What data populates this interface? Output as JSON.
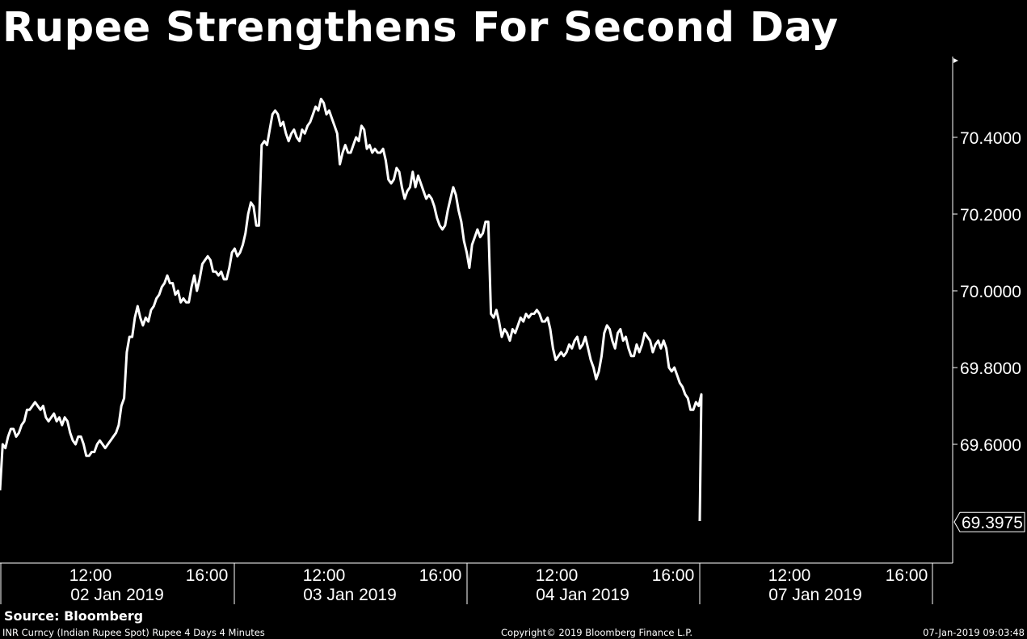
{
  "title": "Rupee Strengthens For Second Day",
  "chart_data": {
    "type": "line",
    "title": "Rupee Strengthens For Second Day",
    "xlabel": "",
    "ylabel": "",
    "ylim": [
      69.3,
      70.6
    ],
    "y_ticks": [
      69.6,
      69.8,
      70.0,
      70.2,
      70.4
    ],
    "y_tick_labels": [
      "69.6000",
      "69.8000",
      "70.0000",
      "70.2000",
      "70.4000"
    ],
    "last_value": 69.3975,
    "last_value_label": "69.3975",
    "x_time_ticks": [
      "12:00",
      "16:00",
      "12:00",
      "16:00",
      "12:00",
      "16:00",
      "12:00",
      "16:00"
    ],
    "x_date_labels": [
      "02 Jan 2019",
      "03 Jan 2019",
      "04 Jan 2019",
      "07 Jan 2019"
    ],
    "series": [
      {
        "values": [
          69.48,
          69.6,
          69.59,
          69.62,
          69.64,
          69.64,
          69.62,
          69.63,
          69.65,
          69.66,
          69.69,
          69.69,
          69.7,
          69.71,
          69.7,
          69.69,
          69.7,
          69.67,
          69.66,
          69.67,
          69.68,
          69.66,
          69.67,
          69.65,
          69.67,
          69.66,
          69.63,
          69.61,
          69.6,
          69.62,
          69.62,
          69.6,
          69.57,
          69.57,
          69.58,
          69.58,
          69.6,
          69.61,
          69.6,
          69.59,
          69.6,
          69.61,
          69.62,
          69.63,
          69.65,
          69.7,
          69.72,
          69.84,
          69.88,
          69.88,
          69.93,
          69.96,
          69.93,
          69.91,
          69.93,
          69.92,
          69.95,
          69.96,
          69.98,
          69.99,
          70.01,
          70.02,
          70.04,
          70.02,
          70.02,
          69.99,
          70.0,
          69.97,
          69.98,
          69.97,
          69.97,
          70.01,
          70.04,
          70.0,
          70.03,
          70.07,
          70.08,
          70.09,
          70.08,
          70.05,
          70.05,
          70.04,
          70.05,
          70.03,
          70.03,
          70.06,
          70.1,
          70.11,
          70.09,
          70.1,
          70.12,
          70.15,
          70.2,
          70.23,
          70.22,
          70.17,
          70.17,
          70.38,
          70.39,
          70.38,
          70.42,
          70.46,
          70.47,
          70.46,
          70.43,
          70.44,
          70.41,
          70.39,
          70.41,
          70.42,
          70.4,
          70.39,
          70.42,
          70.41,
          70.43,
          70.44,
          70.46,
          70.48,
          70.47,
          70.5,
          70.49,
          70.46,
          70.47,
          70.45,
          70.43,
          70.41,
          70.33,
          70.36,
          70.38,
          70.36,
          70.36,
          70.38,
          70.4,
          70.39,
          70.43,
          70.42,
          70.37,
          70.38,
          70.36,
          70.37,
          70.36,
          70.36,
          70.37,
          70.34,
          70.29,
          70.28,
          70.29,
          70.32,
          70.31,
          70.27,
          70.24,
          70.26,
          70.27,
          70.31,
          70.27,
          70.3,
          70.28,
          70.26,
          70.24,
          70.25,
          70.24,
          70.22,
          70.19,
          70.17,
          70.16,
          70.17,
          70.21,
          70.24,
          70.27,
          70.25,
          70.21,
          70.18,
          70.13,
          70.1,
          70.06,
          70.12,
          70.14,
          70.16,
          70.14,
          70.15,
          70.18,
          70.18,
          69.94,
          69.93,
          69.95,
          69.92,
          69.88,
          69.9,
          69.89,
          69.87,
          69.9,
          69.89,
          69.91,
          69.93,
          69.92,
          69.94,
          69.93,
          69.94,
          69.94,
          69.95,
          69.94,
          69.92,
          69.92,
          69.93,
          69.9,
          69.85,
          69.82,
          69.83,
          69.84,
          69.83,
          69.84,
          69.86,
          69.85,
          69.87,
          69.88,
          69.85,
          69.86,
          69.88,
          69.85,
          69.82,
          69.8,
          69.77,
          69.79,
          69.83,
          69.89,
          69.91,
          69.9,
          69.87,
          69.85,
          69.89,
          69.9,
          69.87,
          69.88,
          69.85,
          69.83,
          69.83,
          69.86,
          69.84,
          69.86,
          69.89,
          69.88,
          69.87,
          69.84,
          69.86,
          69.87,
          69.85,
          69.87,
          69.85,
          69.8,
          69.79,
          69.8,
          69.78,
          69.76,
          69.75,
          69.73,
          69.72,
          69.69,
          69.69,
          69.71,
          69.7,
          69.73,
          69.4
        ]
      }
    ]
  },
  "footer": {
    "source": "Source: Bloomberg",
    "description": "INR Curncy (Indian Rupee Spot) Rupee 4 Days 4 Minutes",
    "copyright": "Copyright© 2019 Bloomberg Finance L.P.",
    "timestamp": "07-Jan-2019 09:03:48"
  },
  "colors": {
    "background": "#000000",
    "line": "#ffffff",
    "axis": "#ffffff"
  }
}
